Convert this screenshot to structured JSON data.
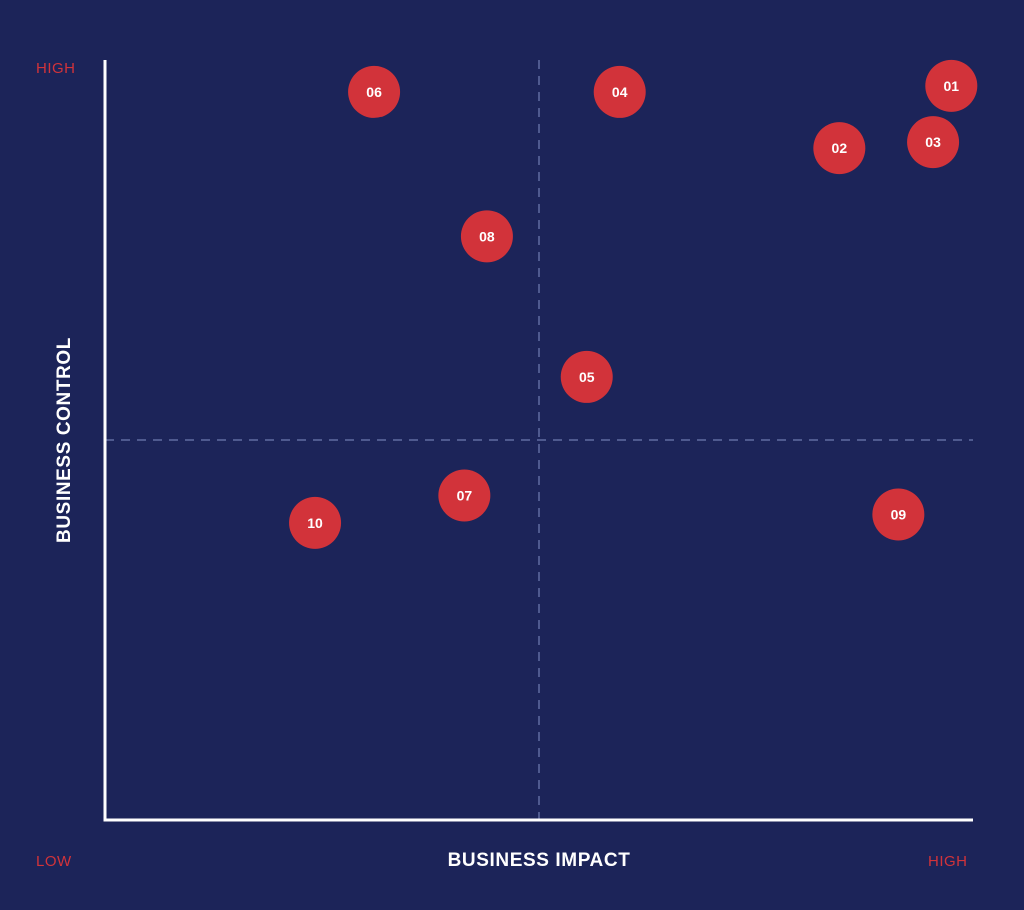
{
  "colors": {
    "background": "#1c2459",
    "point": "#d2333a",
    "axis": "#ffffff",
    "divider": "#4f5a8f",
    "endpoint_label": "#d2333a"
  },
  "chart_data": {
    "type": "scatter",
    "title": "",
    "xlabel": "BUSINESS IMPACT",
    "ylabel": "BUSINESS CONTROL",
    "x_low_label": "LOW",
    "x_high_label": "HIGH",
    "y_high_label": "HIGH",
    "xlim": [
      0,
      100
    ],
    "ylim": [
      0,
      100
    ],
    "dividers": {
      "x": 50,
      "y": 50
    },
    "grid": false,
    "legend": "none",
    "points": [
      {
        "label": "01",
        "x": 97.5,
        "y": 96.6
      },
      {
        "label": "02",
        "x": 84.6,
        "y": 88.4
      },
      {
        "label": "03",
        "x": 95.4,
        "y": 89.2
      },
      {
        "label": "04",
        "x": 59.3,
        "y": 95.8
      },
      {
        "label": "05",
        "x": 55.5,
        "y": 58.3
      },
      {
        "label": "06",
        "x": 31.0,
        "y": 95.8
      },
      {
        "label": "07",
        "x": 41.4,
        "y": 42.7
      },
      {
        "label": "08",
        "x": 44.0,
        "y": 76.8
      },
      {
        "label": "09",
        "x": 91.4,
        "y": 40.2
      },
      {
        "label": "10",
        "x": 24.2,
        "y": 39.1
      }
    ]
  }
}
